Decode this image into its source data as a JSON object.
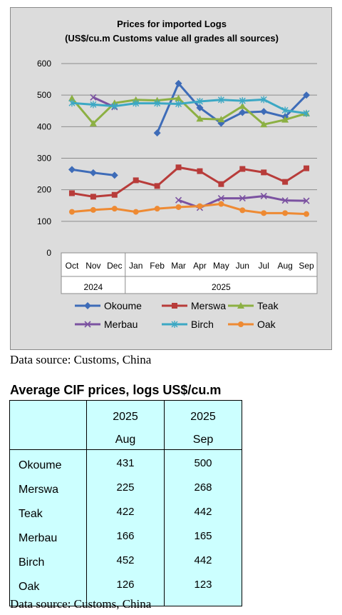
{
  "chart_data": {
    "type": "line",
    "title": "Prices for imported Logs",
    "subtitle": "(US$/cu.m Customs value all grades all sources)",
    "categories": [
      "Oct",
      "Nov",
      "Dec",
      "Jan",
      "Feb",
      "Mar",
      "Apr",
      "May",
      "Jun",
      "Jul",
      "Aug",
      "Sep"
    ],
    "year_groups": [
      {
        "label": "2024",
        "start": 0,
        "end": 2
      },
      {
        "label": "2025",
        "start": 3,
        "end": 11
      }
    ],
    "ylim": [
      0,
      600
    ],
    "yticks": [
      "0",
      "100",
      "200",
      "300",
      "400",
      "500",
      "600"
    ],
    "grid": true,
    "legend_position": "bottom",
    "series": [
      {
        "name": "Okoume",
        "color": "#3e6cb8",
        "marker": "diamond",
        "values": [
          264,
          254,
          246,
          null,
          380,
          537,
          460,
          411,
          445,
          448,
          431,
          500
        ]
      },
      {
        "name": "Merswa",
        "color": "#b83c3a",
        "marker": "square",
        "values": [
          189,
          178,
          184,
          230,
          212,
          271,
          259,
          218,
          266,
          255,
          225,
          268
        ]
      },
      {
        "name": "Teak",
        "color": "#8cb043",
        "marker": "triangle",
        "values": [
          490,
          410,
          475,
          485,
          483,
          490,
          425,
          423,
          465,
          407,
          422,
          442
        ]
      },
      {
        "name": "Merbau",
        "color": "#7b52a1",
        "marker": "x",
        "values": [
          null,
          493,
          462,
          null,
          null,
          167,
          143,
          173,
          173,
          180,
          166,
          165
        ]
      },
      {
        "name": "Birch",
        "color": "#3ca8c4",
        "marker": "star",
        "values": [
          475,
          470,
          465,
          474,
          474,
          472,
          480,
          485,
          482,
          486,
          452,
          442
        ]
      },
      {
        "name": "Oak",
        "color": "#ee8a33",
        "marker": "circle",
        "values": [
          130,
          136,
          140,
          130,
          140,
          145,
          148,
          155,
          135,
          126,
          126,
          123
        ]
      }
    ]
  },
  "source_note_1": "Data source: Customs, China",
  "table": {
    "title": "Average CIF prices, logs US$/cu.m",
    "columns": [
      {
        "year": "2025",
        "month": "Aug"
      },
      {
        "year": "2025",
        "month": "Sep"
      }
    ],
    "rows": [
      {
        "name": "Okoume",
        "aug": "431",
        "sep": "500"
      },
      {
        "name": "Merswa",
        "aug": "225",
        "sep": "268"
      },
      {
        "name": "Teak",
        "aug": "422",
        "sep": "442"
      },
      {
        "name": "Merbau",
        "aug": "166",
        "sep": "165"
      },
      {
        "name": "Birch",
        "aug": "452",
        "sep": "442"
      },
      {
        "name": "Oak",
        "aug": "126",
        "sep": "123"
      }
    ]
  },
  "source_note_2": "Data source: Customs, China"
}
